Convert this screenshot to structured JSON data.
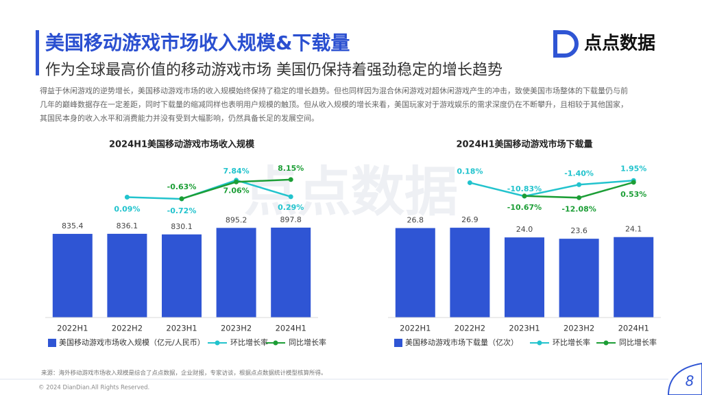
{
  "header": {
    "title": "美国移动游戏市场收入规模&下载量",
    "subtitle": "作为全球最高价值的移动游戏市场 美国仍保持着强劲稳定的增长趋势",
    "logo": "点点数据"
  },
  "paragraph": [
    "得益于休闲游戏的逆势增长，美国移动游戏市场的收入规模始终保持了稳定的增长趋势。但也同样因为混合休闲游戏对超休闲游戏产生的冲击，致使美国市场整体的下载量仍与前",
    "几年的巅峰数据存在一定差距，同时下载量的缩减同样也表明用户规模的触顶。但从收入规模的增长来看，美国玩家对于游戏娱乐的需求深度仍在不断攀升，且相较于其他国家，",
    "其国民本身的收入水平和消费能力并没有受到大幅影响，仍然具备长足的发展空间。"
  ],
  "watermark": "点点数据",
  "chart_data": [
    {
      "type": "bar",
      "title": "2024H1美国移动游戏市场收入规模",
      "categories": [
        "2022H1",
        "2022H2",
        "2023H1",
        "2023H2",
        "2024H1"
      ],
      "ylim": [
        0,
        1000
      ],
      "y2lim": [
        -55,
        15
      ],
      "series": [
        {
          "name": "美国移动游戏市场收入规模（亿元/人民币）",
          "type": "bar",
          "color": "#2f55d4",
          "values": [
            835.4,
            836.1,
            830.1,
            895.2,
            897.8
          ],
          "value_labels": [
            "835.4",
            "836.1",
            "830.1",
            "895.2",
            "897.8"
          ]
        },
        {
          "name": "环比增长率",
          "type": "line",
          "axis": "y2",
          "color": "#22c3cd",
          "values": [
            null,
            0.09,
            -0.72,
            7.84,
            0.29
          ],
          "value_labels": [
            null,
            "0.09%",
            "-0.72%",
            "7.84%",
            "0.29%"
          ]
        },
        {
          "name": "同比增长率",
          "type": "line",
          "axis": "y2",
          "color": "#1c9e36",
          "values": [
            null,
            null,
            -0.63,
            7.06,
            8.15
          ],
          "value_labels": [
            null,
            null,
            "-0.63%",
            "7.06%",
            "8.15%"
          ]
        }
      ]
    },
    {
      "type": "bar",
      "title": "2024H1美国移动游戏市场下载量",
      "categories": [
        "2022H1",
        "2022H2",
        "2023H1",
        "2023H2",
        "2024H1"
      ],
      "ylim": [
        0,
        30
      ],
      "y2lim": [
        -110,
        15
      ],
      "series": [
        {
          "name": "美国移动游戏市场下载量（亿次）",
          "type": "bar",
          "color": "#2f55d4",
          "values": [
            26.8,
            26.9,
            24.0,
            23.6,
            24.1
          ],
          "value_labels": [
            "26.8",
            "26.9",
            "24.0",
            "23.6",
            "24.1"
          ]
        },
        {
          "name": "环比增长率",
          "type": "line",
          "axis": "y2",
          "color": "#22c3cd",
          "values": [
            null,
            0.18,
            -10.83,
            -1.4,
            1.95
          ],
          "value_labels": [
            null,
            "0.18%",
            "-10.83%",
            "-1.40%",
            "1.95%"
          ]
        },
        {
          "name": "同比增长率",
          "type": "line",
          "axis": "y2",
          "color": "#1c9e36",
          "values": [
            null,
            null,
            -10.67,
            -12.08,
            0.53
          ],
          "value_labels": [
            null,
            null,
            "-10.67%",
            "-12.08%",
            "0.53%"
          ]
        }
      ]
    }
  ],
  "source": "来源：海外移动游戏市场收入规模是综合了点点数据，企业财报，专家访谈，根据点点数据统计模型核算所得。",
  "footer": "© 2024 DianDian.All Rights Reserved.",
  "page_number": "8"
}
